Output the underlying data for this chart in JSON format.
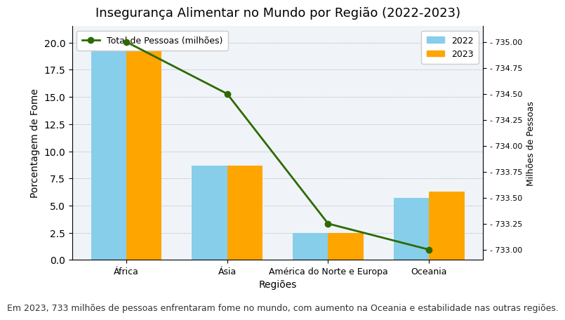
{
  "title": "Insegurança Alimentar no Mundo por Região (2022-2023)",
  "categories": [
    "África",
    "Ásia",
    "América do Norte e Europa",
    "Oceania"
  ],
  "values_2022": [
    20.0,
    8.7,
    2.5,
    5.7
  ],
  "values_2023": [
    20.1,
    8.7,
    2.5,
    6.3
  ],
  "line_values": [
    735.0,
    734.5,
    733.25,
    733.0
  ],
  "bar_color_2022": "#87CEEB",
  "bar_color_2023": "#FFA500",
  "line_color": "#2d6a00",
  "xlabel": "Regiões",
  "ylabel_left": "Porcentagem de Fome",
  "ylabel_right": "Milhões de Pessoas",
  "ylim_left": [
    0,
    21.5
  ],
  "ylim_right": [
    732.9,
    735.15
  ],
  "yticks_right": [
    733.0,
    733.25,
    733.5,
    733.75,
    734.0,
    734.25,
    734.5,
    734.75,
    735.0
  ],
  "caption": "Em 2023, 733 milhões de pessoas enfrentaram fome no mundo, com aumento na Oceania e estabilidade nas outras regiões.",
  "line_label": "Total de Pessoas (milhões)",
  "legend_2022": "2022",
  "legend_2023": "2023",
  "background_color": "#ffffff",
  "plot_bg_color": "#f0f4f8",
  "title_fontsize": 13,
  "caption_fontsize": 9,
  "bar_width": 0.35
}
